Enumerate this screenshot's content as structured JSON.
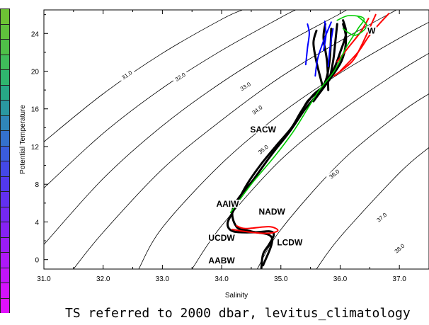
{
  "colorbar": {
    "colors": [
      "#6dc334",
      "#5fc13c",
      "#4fbf48",
      "#3fbb5a",
      "#2fb56e",
      "#27a786",
      "#2a98a0",
      "#2f86b8",
      "#3471cc",
      "#3a5cdc",
      "#4448e6",
      "#5238ec",
      "#6230f0",
      "#7428f2",
      "#8622f4",
      "#9a1cf6",
      "#ae18f8",
      "#c214fa",
      "#d412fb",
      "#e010fc"
    ]
  },
  "caption": "TS referred to 2000 dbar, levitus_climatology",
  "chart_data": {
    "type": "line",
    "title": "",
    "xlabel": "Salinity",
    "ylabel": "Potential Temperature",
    "xlim": [
      31.0,
      37.5
    ],
    "ylim": [
      -1.0,
      26.5
    ],
    "xticks": [
      31.0,
      32.0,
      33.0,
      34.0,
      35.0,
      36.0,
      37.0
    ],
    "xtick_labels": [
      "31.0",
      "32.0",
      "33.0",
      "34.0",
      "35.0",
      "36.0",
      "37.0"
    ],
    "yticks": [
      0,
      4,
      8,
      12,
      16,
      20,
      24
    ],
    "ytick_labels": [
      "0",
      "4",
      "8",
      "12",
      "16",
      "20",
      "24"
    ],
    "grid": false,
    "density_contours": [
      {
        "label": "31.0",
        "points": [
          [
            31.0,
            12.5
          ],
          [
            32.0,
            17.6
          ],
          [
            33.0,
            21.9
          ],
          [
            34.0,
            25.5
          ],
          [
            34.35,
            26.5
          ]
        ],
        "label_at": [
          32.4,
          19.6
        ]
      },
      {
        "label": "32.0",
        "points": [
          [
            31.0,
            7.6
          ],
          [
            32.0,
            13.4
          ],
          [
            33.0,
            18.2
          ],
          [
            34.0,
            22.2
          ],
          [
            35.0,
            25.7
          ],
          [
            35.25,
            26.5
          ]
        ],
        "label_at": [
          33.3,
          19.4
        ]
      },
      {
        "label": "33.0",
        "points": [
          [
            31.0,
            1.6
          ],
          [
            32.0,
            8.6
          ],
          [
            33.0,
            14.2
          ],
          [
            34.0,
            18.8
          ],
          [
            35.0,
            22.7
          ],
          [
            36.0,
            26.1
          ],
          [
            36.1,
            26.5
          ]
        ],
        "label_at": [
          34.4,
          18.4
        ]
      },
      {
        "label": "34.0",
        "points": [
          [
            31.5,
            -1.0
          ],
          [
            32.0,
            2.9
          ],
          [
            33.0,
            9.6
          ],
          [
            34.0,
            14.8
          ],
          [
            35.0,
            19.4
          ],
          [
            36.0,
            23.2
          ],
          [
            36.95,
            26.5
          ]
        ],
        "label_at": [
          34.6,
          15.9
        ]
      },
      {
        "label": "35.0",
        "points": [
          [
            32.6,
            -1.0
          ],
          [
            33.0,
            3.4
          ],
          [
            34.0,
            10.2
          ],
          [
            35.0,
            15.5
          ],
          [
            36.0,
            19.8
          ],
          [
            37.0,
            23.5
          ],
          [
            37.5,
            25.2
          ]
        ],
        "label_at": [
          34.7,
          11.7
        ]
      },
      {
        "label": "36.0",
        "points": [
          [
            33.5,
            -1.0
          ],
          [
            34.0,
            3.6
          ],
          [
            35.0,
            10.6
          ],
          [
            36.0,
            15.7
          ],
          [
            37.0,
            20.0
          ],
          [
            37.5,
            21.9
          ]
        ],
        "label_at": [
          35.9,
          9.1
        ]
      },
      {
        "label": "37.0",
        "points": [
          [
            34.6,
            -1.0
          ],
          [
            35.0,
            3.2
          ],
          [
            36.0,
            10.3
          ],
          [
            37.0,
            15.5
          ],
          [
            37.5,
            17.6
          ]
        ],
        "label_at": [
          36.7,
          4.5
        ]
      },
      {
        "label": "38.0",
        "points": [
          [
            35.6,
            -1.0
          ],
          [
            36.0,
            2.4
          ],
          [
            37.0,
            9.2
          ],
          [
            37.5,
            11.9
          ]
        ],
        "label_at": [
          37.0,
          1.2
        ]
      }
    ],
    "series": [
      {
        "color": "#000000",
        "width": 3,
        "points": [
          [
            34.67,
            -0.9
          ],
          [
            34.7,
            0.6
          ],
          [
            34.8,
            1.6
          ],
          [
            34.88,
            2.6
          ],
          [
            34.82,
            3.0
          ],
          [
            34.55,
            2.9
          ],
          [
            34.2,
            3.0
          ],
          [
            34.1,
            3.8
          ],
          [
            34.2,
            5.2
          ],
          [
            34.4,
            7.7
          ],
          [
            34.65,
            10.0
          ],
          [
            34.95,
            12.3
          ],
          [
            35.18,
            14.0
          ],
          [
            35.35,
            15.8
          ],
          [
            35.55,
            17.5
          ],
          [
            35.75,
            18.6
          ],
          [
            35.9,
            20.3
          ],
          [
            36.0,
            22.0
          ],
          [
            36.1,
            24.0
          ],
          [
            36.05,
            25.4
          ]
        ]
      },
      {
        "color": "#000000",
        "width": 3,
        "points": [
          [
            34.7,
            -0.6
          ],
          [
            34.85,
            2.3
          ],
          [
            34.5,
            3.0
          ],
          [
            34.25,
            3.5
          ],
          [
            34.2,
            5.6
          ],
          [
            34.55,
            8.6
          ],
          [
            34.85,
            11.2
          ],
          [
            35.15,
            13.6
          ],
          [
            35.4,
            15.9
          ],
          [
            35.6,
            17.4
          ],
          [
            35.8,
            19.0
          ],
          [
            35.88,
            21.0
          ],
          [
            35.92,
            23.2
          ],
          [
            35.95,
            25.0
          ]
        ]
      },
      {
        "color": "#000000",
        "width": 3,
        "points": [
          [
            35.3,
            15.0
          ],
          [
            35.45,
            16.8
          ],
          [
            35.72,
            18.5
          ],
          [
            35.82,
            21.0
          ],
          [
            35.85,
            24.5
          ]
        ]
      },
      {
        "color": "#000000",
        "width": 3,
        "points": [
          [
            35.55,
            16.8
          ],
          [
            35.9,
            19.8
          ],
          [
            36.05,
            21.5
          ],
          [
            36.1,
            23.5
          ],
          [
            36.05,
            25.0
          ]
        ]
      },
      {
        "color": "#000000",
        "width": 3,
        "points": [
          [
            35.8,
            18.0
          ],
          [
            35.78,
            21.0
          ],
          [
            35.72,
            23.5
          ],
          [
            35.75,
            25.0
          ]
        ]
      },
      {
        "color": "#000000",
        "width": 3,
        "points": [
          [
            35.7,
            18.5
          ],
          [
            35.6,
            21.0
          ],
          [
            35.55,
            23.0
          ],
          [
            35.6,
            24.3
          ]
        ]
      },
      {
        "color": "#ff0000",
        "width": 2,
        "points": [
          [
            34.18,
            3.2
          ],
          [
            34.5,
            2.9
          ],
          [
            34.8,
            2.8
          ],
          [
            34.95,
            3.1
          ],
          [
            34.8,
            3.5
          ],
          [
            34.4,
            3.3
          ],
          [
            34.25,
            3.6
          ]
        ]
      },
      {
        "color": "#ff0000",
        "width": 2,
        "points": [
          [
            35.9,
            19.5
          ],
          [
            36.2,
            21.0
          ],
          [
            36.35,
            22.6
          ],
          [
            36.5,
            24.6
          ],
          [
            36.6,
            26.0
          ]
        ]
      },
      {
        "color": "#ff0000",
        "width": 2,
        "points": [
          [
            36.0,
            20.0
          ],
          [
            36.3,
            22.0
          ],
          [
            36.52,
            24.0
          ],
          [
            36.82,
            26.1
          ]
        ]
      },
      {
        "color": "#ff0000",
        "width": 2,
        "points": [
          [
            35.95,
            21.0
          ],
          [
            36.15,
            22.6
          ],
          [
            36.35,
            24.2
          ],
          [
            36.48,
            25.6
          ]
        ]
      },
      {
        "color": "#00cc00",
        "width": 1.6,
        "points": [
          [
            34.15,
            5.0
          ],
          [
            34.5,
            8.0
          ],
          [
            34.9,
            11.0
          ],
          [
            35.2,
            13.5
          ],
          [
            35.45,
            16.0
          ],
          [
            35.65,
            18.0
          ],
          [
            35.9,
            20.0
          ],
          [
            36.1,
            22.5
          ],
          [
            36.3,
            24.5
          ],
          [
            36.4,
            25.6
          ],
          [
            36.15,
            25.9
          ],
          [
            35.95,
            25.4
          ]
        ]
      },
      {
        "color": "#00cc00",
        "width": 1.6,
        "points": [
          [
            36.05,
            24.5
          ],
          [
            36.25,
            23.8
          ],
          [
            36.45,
            24.8
          ],
          [
            36.3,
            25.8
          ]
        ]
      },
      {
        "color": "#0000ff",
        "width": 2,
        "points": [
          [
            35.42,
            20.7
          ],
          [
            35.45,
            22.5
          ],
          [
            35.48,
            24.0
          ],
          [
            35.45,
            25.0
          ]
        ]
      },
      {
        "color": "#0000ff",
        "width": 2,
        "points": [
          [
            35.58,
            19.5
          ],
          [
            35.62,
            21.3
          ],
          [
            35.72,
            23.2
          ],
          [
            35.85,
            25.2
          ]
        ]
      },
      {
        "color": "#0000ff",
        "width": 2,
        "points": [
          [
            35.8,
            20.5
          ],
          [
            35.83,
            22.5
          ],
          [
            35.88,
            24.5
          ]
        ]
      },
      {
        "color": "#0000ff",
        "width": 2,
        "points": [
          [
            35.72,
            22.2
          ],
          [
            35.76,
            23.8
          ],
          [
            35.74,
            25.3
          ]
        ]
      }
    ],
    "annotations": [
      {
        "text": "SACW",
        "x": 34.7,
        "y": 13.5
      },
      {
        "text": "AAIW",
        "x": 34.1,
        "y": 5.6
      },
      {
        "text": "NADW",
        "x": 34.85,
        "y": 4.8
      },
      {
        "text": "UCDW",
        "x": 34.0,
        "y": 2.0
      },
      {
        "text": "LCDW",
        "x": 35.15,
        "y": 1.5
      },
      {
        "text": "AABW",
        "x": 34.0,
        "y": -0.4
      },
      {
        "text": "W",
        "x": 36.53,
        "y": 24.0
      }
    ]
  }
}
